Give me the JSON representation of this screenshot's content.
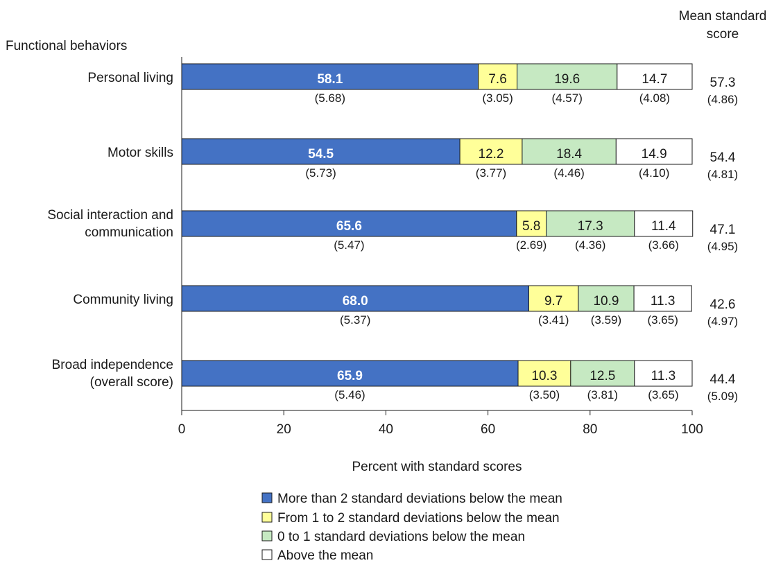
{
  "chart_data": {
    "type": "bar",
    "orientation": "horizontal",
    "stacked": true,
    "title": "",
    "row_header": "Functional behaviors",
    "right_header_line1": "Mean standard",
    "right_header_line2": "score",
    "xlabel": "Percent with standard scores",
    "ylabel": "",
    "xlim": [
      0,
      100
    ],
    "xticks": [
      "0",
      "20",
      "40",
      "60",
      "80",
      "100"
    ],
    "grid": false,
    "legend_position": "bottom",
    "categories": [
      {
        "line1": "Personal living",
        "line2": ""
      },
      {
        "line1": "Motor skills",
        "line2": ""
      },
      {
        "line1": "Social interaction and",
        "line2": "communication"
      },
      {
        "line1": "Community living",
        "line2": ""
      },
      {
        "line1": "Broad independence",
        "line2": "(overall score)"
      }
    ],
    "series": [
      {
        "name": "More than 2 standard deviations below the mean",
        "color": "#4472c4",
        "label_color": "#ffffff",
        "values": [
          58.1,
          54.5,
          65.6,
          68.0,
          65.9
        ],
        "value_labels": [
          "58.1",
          "54.5",
          "65.6",
          "68.0",
          "65.9"
        ],
        "se": [
          "(5.68)",
          "(5.73)",
          "(5.47)",
          "(5.37)",
          "(5.46)"
        ]
      },
      {
        "name": "From 1 to 2 standard deviations below the mean",
        "color": "#ffff99",
        "label_color": "#1a1a1a",
        "values": [
          7.6,
          12.2,
          5.8,
          9.7,
          10.3
        ],
        "value_labels": [
          "7.6",
          "12.2",
          "5.8",
          "9.7",
          "10.3"
        ],
        "se": [
          "(3.05)",
          "(3.77)",
          "(2.69)",
          "(3.41)",
          "(3.50)"
        ]
      },
      {
        "name": "0 to 1 standard deviations below the mean",
        "color": "#c6e9c2",
        "label_color": "#1a1a1a",
        "values": [
          19.6,
          18.4,
          17.3,
          10.9,
          12.5
        ],
        "value_labels": [
          "19.6",
          "18.4",
          "17.3",
          "10.9",
          "12.5"
        ],
        "se": [
          "(4.57)",
          "(4.46)",
          "(4.36)",
          "(3.59)",
          "(3.81)"
        ]
      },
      {
        "name": "Above the mean",
        "color": "#ffffff",
        "label_color": "#1a1a1a",
        "values": [
          14.7,
          14.9,
          11.4,
          11.3,
          11.3
        ],
        "value_labels": [
          "14.7",
          "14.9",
          "11.4",
          "11.3",
          "11.3"
        ],
        "se": [
          "(4.08)",
          "(4.10)",
          "(3.66)",
          "(3.65)",
          "(3.65)"
        ]
      }
    ],
    "mean_standard_score": [
      "57.3",
      "54.4",
      "47.1",
      "42.6",
      "44.4"
    ],
    "mean_standard_score_se": [
      "(4.86)",
      "(4.81)",
      "(4.95)",
      "(4.97)",
      "(5.09)"
    ]
  }
}
